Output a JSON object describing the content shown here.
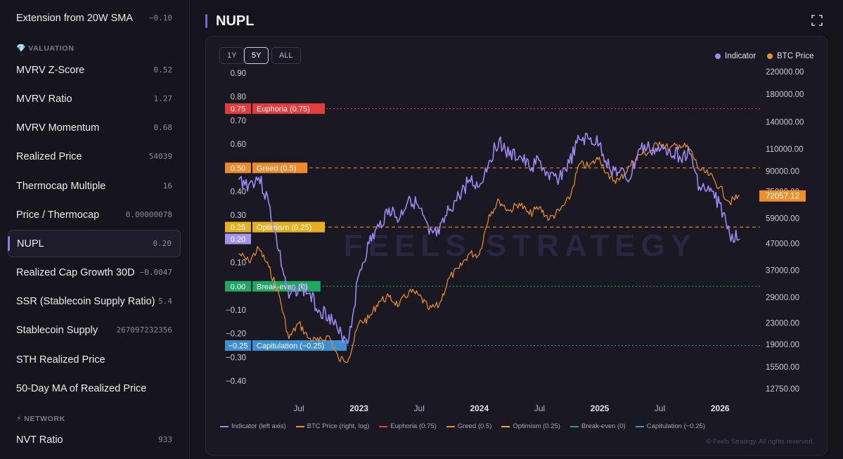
{
  "sidebar": {
    "items_top": [
      {
        "label": "Extension from 20W SMA",
        "value": "−0.10"
      }
    ],
    "section_valuation": {
      "icon": "💎",
      "label": "VALUATION"
    },
    "items_valuation": [
      {
        "label": "MVRV Z-Score",
        "value": "0.52"
      },
      {
        "label": "MVRV Ratio",
        "value": "1.27"
      },
      {
        "label": "MVRV Momentum",
        "value": "0.68"
      },
      {
        "label": "Realized Price",
        "value": "54039"
      },
      {
        "label": "Thermocap Multiple",
        "value": "16"
      },
      {
        "label": "Price / Thermocap",
        "value": "0.00000078"
      },
      {
        "label": "NUPL",
        "value": "0.20",
        "active": true
      },
      {
        "label": "Realized Cap Growth 30D",
        "value": "−0.0047"
      },
      {
        "label": "SSR (Stablecoin Supply Ratio)",
        "value": "5.4"
      },
      {
        "label": "Stablecoin Supply",
        "value": "267097232356"
      },
      {
        "label": "STH Realized Price",
        "value": ""
      },
      {
        "label": "50-Day MA of Realized Price",
        "value": ""
      }
    ],
    "section_network": {
      "icon": "⚡",
      "label": "NETWORK"
    },
    "items_network": [
      {
        "label": "NVT Ratio",
        "value": "933"
      }
    ]
  },
  "header": {
    "title": "NUPL"
  },
  "range_buttons": [
    {
      "label": "1Y",
      "active": false
    },
    {
      "label": "5Y",
      "active": true
    },
    {
      "label": "ALL",
      "active": false
    }
  ],
  "legend_top": [
    {
      "label": "Indicator",
      "color": "#9d8af0"
    },
    {
      "label": "BTC Price",
      "color": "#ef8f2a"
    }
  ],
  "bottom_legend": [
    {
      "label": "Indicator (left axis)",
      "color": "#9d8af0"
    },
    {
      "label": "BTC Price (right, log)",
      "color": "#ef8f2a"
    },
    {
      "label": "Euphoria (0.75)",
      "color": "#e23c3c"
    },
    {
      "label": "Greed (0.5)",
      "color": "#ef8a2a"
    },
    {
      "label": "Optimism (0.25)",
      "color": "#e8b020"
    },
    {
      "label": "Break-even (0)",
      "color": "#1fa864"
    },
    {
      "label": "Capitulation (−0.25)",
      "color": "#3d8fcf"
    }
  ],
  "copyright": "© Feels Strategy. All rights reserved.",
  "watermark": "FEELS STRATEGY",
  "chart_data": {
    "type": "line",
    "left_axis": {
      "ticks": [
        "0.90",
        "0.80",
        "0.70",
        "0.60",
        "0.50",
        "0.40",
        "0.30",
        "0.20",
        "0.10",
        "0.00",
        "−0.10",
        "−0.20",
        "−0.30",
        "−0.40"
      ],
      "range": [
        -0.45,
        0.9
      ]
    },
    "right_axis": {
      "scale": "log",
      "ticks": [
        "220000.00",
        "180000.00",
        "140000.00",
        "110000.00",
        "90000.00",
        "75000.00",
        "59000.00",
        "47000.00",
        "37000.00",
        "29000.00",
        "23000.00",
        "19000.00",
        "15500.00",
        "12750.00"
      ]
    },
    "x_ticks": [
      "Jul",
      "2023",
      "Jul",
      "2024",
      "Jul",
      "2025",
      "Jul",
      "2026"
    ],
    "x_range": [
      "2022-01",
      "2026-03"
    ],
    "thresholds": [
      {
        "name": "Euphoria",
        "label": "Euphoria (0.75)",
        "value": 0.75,
        "value_label": "0.75",
        "color": "#e23c3c",
        "style": "dotted"
      },
      {
        "name": "Greed",
        "label": "Greed (0.5)",
        "value": 0.5,
        "value_label": "0.50",
        "color": "#ef8a2a",
        "style": "dashed"
      },
      {
        "name": "Optimism",
        "label": "Optimism (0.25)",
        "value": 0.25,
        "value_label": "0.25",
        "color": "#e8b020",
        "style": "dashed"
      },
      {
        "name": "Break-even",
        "label": "Break-even (0)",
        "value": 0.0,
        "value_label": "0.00",
        "color": "#1fa864",
        "style": "dotted"
      },
      {
        "name": "Capitulation",
        "label": "Capitulation (−0.25)",
        "value": -0.25,
        "value_label": "−0.25",
        "color": "#3d8fcf",
        "style": "dotted"
      }
    ],
    "current": {
      "indicator": "0.20",
      "btc_price": "72057.12"
    },
    "series": [
      {
        "name": "Indicator",
        "axis": "left",
        "color": "#9d8af0",
        "x": [
          "2022-01",
          "2022-02",
          "2022-03",
          "2022-04",
          "2022-05",
          "2022-06",
          "2022-07",
          "2022-08",
          "2022-09",
          "2022-10",
          "2022-11",
          "2022-12",
          "2023-01",
          "2023-02",
          "2023-03",
          "2023-04",
          "2023-05",
          "2023-06",
          "2023-07",
          "2023-08",
          "2023-09",
          "2023-10",
          "2023-11",
          "2023-12",
          "2024-01",
          "2024-02",
          "2024-03",
          "2024-04",
          "2024-05",
          "2024-06",
          "2024-07",
          "2024-08",
          "2024-09",
          "2024-10",
          "2024-11",
          "2024-12",
          "2025-01",
          "2025-02",
          "2025-03",
          "2025-04",
          "2025-05",
          "2025-06",
          "2025-07",
          "2025-08",
          "2025-09",
          "2025-10",
          "2025-11",
          "2025-12",
          "2026-01",
          "2026-02",
          "2026-03"
        ],
        "values": [
          0.45,
          0.43,
          0.46,
          0.35,
          0.15,
          -0.05,
          0.0,
          -0.03,
          -0.1,
          -0.12,
          -0.2,
          -0.22,
          0.05,
          0.18,
          0.25,
          0.33,
          0.28,
          0.38,
          0.33,
          0.22,
          0.22,
          0.32,
          0.38,
          0.45,
          0.42,
          0.53,
          0.62,
          0.55,
          0.55,
          0.5,
          0.53,
          0.45,
          0.46,
          0.52,
          0.62,
          0.62,
          0.6,
          0.5,
          0.48,
          0.45,
          0.58,
          0.58,
          0.57,
          0.58,
          0.55,
          0.56,
          0.42,
          0.4,
          0.35,
          0.22,
          0.2
        ]
      },
      {
        "name": "BTC Price",
        "axis": "right",
        "color": "#ef8f2a",
        "x": [
          "2022-01",
          "2022-02",
          "2022-03",
          "2022-04",
          "2022-05",
          "2022-06",
          "2022-07",
          "2022-08",
          "2022-09",
          "2022-10",
          "2022-11",
          "2022-12",
          "2023-01",
          "2023-02",
          "2023-03",
          "2023-04",
          "2023-05",
          "2023-06",
          "2023-07",
          "2023-08",
          "2023-09",
          "2023-10",
          "2023-11",
          "2023-12",
          "2024-01",
          "2024-02",
          "2024-03",
          "2024-04",
          "2024-05",
          "2024-06",
          "2024-07",
          "2024-08",
          "2024-09",
          "2024-10",
          "2024-11",
          "2024-12",
          "2025-01",
          "2025-02",
          "2025-03",
          "2025-04",
          "2025-05",
          "2025-06",
          "2025-07",
          "2025-08",
          "2025-09",
          "2025-10",
          "2025-11",
          "2025-12",
          "2026-01",
          "2026-02",
          "2026-03"
        ],
        "values": [
          43000,
          40000,
          45000,
          38000,
          30000,
          20000,
          23000,
          20000,
          19500,
          20500,
          16500,
          16800,
          23000,
          24000,
          28000,
          29000,
          27000,
          30500,
          29500,
          26000,
          27000,
          34500,
          37500,
          43000,
          42500,
          61000,
          69000,
          63000,
          67500,
          61000,
          65000,
          58500,
          63000,
          70000,
          96000,
          94000,
          102000,
          84000,
          83000,
          94000,
          104500,
          107000,
          117000,
          110000,
          114000,
          110000,
          91000,
          87000,
          78000,
          68000,
          72057
        ]
      }
    ]
  }
}
